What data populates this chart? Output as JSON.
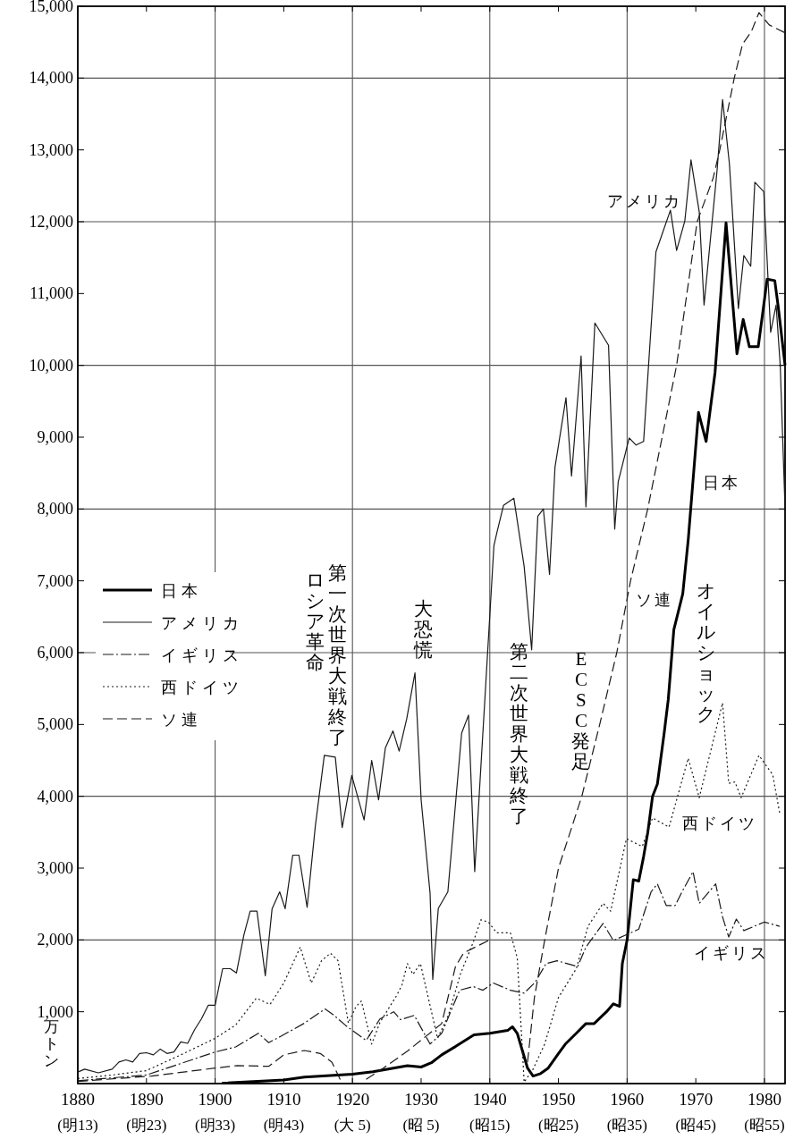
{
  "chart_data": {
    "type": "line",
    "ylabel": "万トン",
    "xlim": [
      1880,
      1983
    ],
    "ylim": [
      0,
      15000
    ],
    "xticks": [
      1880,
      1890,
      1900,
      1910,
      1920,
      1930,
      1940,
      1950,
      1960,
      1970,
      1980
    ],
    "yticks": [
      {
        "value": 0,
        "label": null
      },
      {
        "value": 1000,
        "label": "1,000"
      },
      {
        "value": 2000,
        "label": "2,000"
      },
      {
        "value": 3000,
        "label": "3,000"
      },
      {
        "value": 4000,
        "label": "4,000"
      },
      {
        "value": 5000,
        "label": "5,000"
      },
      {
        "value": 6000,
        "label": "6,000"
      },
      {
        "value": 7000,
        "label": "7,000"
      },
      {
        "value": 8000,
        "label": "8,000"
      },
      {
        "value": 9000,
        "label": "9,000"
      },
      {
        "value": 10000,
        "label": "10,000"
      },
      {
        "value": 11000,
        "label": "11,000"
      },
      {
        "value": 12000,
        "label": "12,000"
      },
      {
        "value": 13000,
        "label": "13,000"
      },
      {
        "value": 14000,
        "label": "14,000"
      },
      {
        "value": 15000,
        "label": "15,000"
      }
    ],
    "grid": true,
    "legend": "left",
    "marker": "none",
    "series": [
      {
        "name": "日本",
        "color": "#000000",
        "line_style": "solid",
        "x": [
          1901,
          1910,
          1913,
          1920,
          1923,
          1928,
          1930,
          1931.5,
          1933,
          1935,
          1937.7,
          1940,
          1942.6,
          1943.3,
          1944,
          1945.5,
          1946.3,
          1947.4,
          1948.5,
          1950,
          1951,
          1952.6,
          1954,
          1955.2,
          1957,
          1958,
          1958.9,
          1959.3,
          1960,
          1960.9,
          1961.7,
          1962.4,
          1963,
          1963.7,
          1964.4,
          1965.4,
          1966,
          1966.8,
          1968.1,
          1968.9,
          1970.4,
          1971.5,
          1972.8,
          1974.4,
          1976,
          1976.9,
          1977.8,
          1979.1,
          1980.4,
          1981.5,
          1982,
          1983
        ],
        "values": [
          5,
          50,
          90,
          130,
          165,
          250,
          230,
          290,
          400,
          515,
          680,
          700,
          740,
          790,
          700,
          215,
          105,
          140,
          215,
          420,
          550,
          700,
          835,
          835,
          1000,
          1110,
          1075,
          1670,
          2000,
          2840,
          2820,
          3160,
          3490,
          4000,
          4170,
          4880,
          5350,
          6320,
          6820,
          7570,
          9345,
          8940,
          9900,
          11985,
          10160,
          10640,
          10260,
          10260,
          11200,
          11180,
          10820,
          10000
        ]
      },
      {
        "name": "アメリカ",
        "color": "#1a1a1a",
        "line_style": "solid",
        "x": [
          1880,
          1881,
          1883,
          1885,
          1886,
          1887,
          1888,
          1889,
          1890,
          1891,
          1892,
          1893,
          1894,
          1895,
          1896,
          1897,
          1898,
          1899,
          1900,
          1901.1,
          1902.2,
          1903.1,
          1904.2,
          1905.1,
          1906.1,
          1907.3,
          1908.3,
          1909.4,
          1910.2,
          1911.3,
          1912.2,
          1913.4,
          1914.6,
          1915.9,
          1917.5,
          1918.5,
          1919.9,
          1921.7,
          1922.8,
          1923.8,
          1924.8,
          1925.9,
          1926.8,
          1927.9,
          1929.1,
          1930,
          1931.3,
          1931.7,
          1932.5,
          1933.9,
          1935.9,
          1936.9,
          1937.8,
          1940.6,
          1941,
          1942,
          1943.5,
          1945,
          1946.1,
          1947,
          1947.8,
          1948.7,
          1949.5,
          1951.1,
          1951.9,
          1953.3,
          1954,
          1955.3,
          1957.3,
          1958.2,
          1958.7,
          1960.3,
          1961.3,
          1962.4,
          1964.2,
          1966.3,
          1967.2,
          1968.4,
          1969.3,
          1970.5,
          1971.2,
          1973.1,
          1973.9,
          1974.9,
          1976.2,
          1977,
          1978,
          1978.6,
          1979.9,
          1980.9,
          1981.7,
          1982.3,
          1983
        ],
        "values": [
          160,
          200,
          150,
          200,
          300,
          330,
          300,
          420,
          430,
          400,
          480,
          420,
          440,
          580,
          560,
          750,
          900,
          1090,
          1090,
          1600,
          1600,
          1540,
          2070,
          2400,
          2400,
          1500,
          2435,
          2670,
          2435,
          3180,
          3180,
          2455,
          3590,
          4570,
          4545,
          3565,
          4290,
          3670,
          4500,
          3950,
          4675,
          4910,
          4630,
          5080,
          5720,
          3950,
          2650,
          1450,
          2440,
          2670,
          4880,
          5130,
          2950,
          7490,
          7660,
          8050,
          8150,
          7200,
          6040,
          7900,
          8000,
          7090,
          8580,
          9550,
          8460,
          10130,
          8030,
          10590,
          10280,
          7720,
          8380,
          8990,
          8890,
          8940,
          11580,
          12160,
          11600,
          12010,
          12860,
          12140,
          10840,
          12720,
          13700,
          12800,
          10790,
          11530,
          11380,
          12550,
          12420,
          10460,
          10840,
          10000,
          8000
        ]
      },
      {
        "name": "イギリス",
        "color": "#1a1a1a",
        "line_style": "dashdot",
        "x": [
          1880,
          1890,
          1900,
          1903,
          1906.3,
          1907.8,
          1909.6,
          1913,
          1916,
          1917.2,
          1919,
          1922,
          1924,
          1926,
          1927,
          1929,
          1931.3,
          1933,
          1935.6,
          1937.6,
          1939,
          1940.5,
          1943,
          1945,
          1946.6,
          1948.2,
          1949.8,
          1952.8,
          1954,
          1956.5,
          1958,
          1959.6,
          1961.7,
          1963.5,
          1964.4,
          1965.7,
          1967,
          1968.1,
          1969.6,
          1970.5,
          1972.9,
          1973.9,
          1974.8,
          1975.9,
          1977,
          1980,
          1982.2
        ],
        "values": [
          40,
          120,
          440,
          510,
          700,
          570,
          660,
          840,
          1040,
          960,
          810,
          600,
          900,
          1000,
          890,
          950,
          550,
          700,
          1300,
          1350,
          1300,
          1400,
          1300,
          1260,
          1410,
          1670,
          1710,
          1630,
          1900,
          2230,
          1990,
          2060,
          2150,
          2670,
          2780,
          2480,
          2480,
          2690,
          2950,
          2510,
          2780,
          2320,
          2040,
          2290,
          2130,
          2250,
          2190
        ]
      },
      {
        "name": "西ドイツ",
        "color": "#1a1a1a",
        "line_style": "dotted",
        "x": [
          1880,
          1885,
          1890,
          1895,
          1900,
          1903,
          1906,
          1908,
          1910,
          1912.4,
          1914,
          1915.5,
          1916.8,
          1917.9,
          1919.4,
          1920.5,
          1921.3,
          1922.8,
          1924,
          1926.4,
          1927.2,
          1928,
          1928.8,
          1929.9,
          1932.4,
          1934,
          1935.7,
          1937.6,
          1938.7,
          1939.8,
          1941,
          1943,
          1944,
          1945,
          1946.3,
          1948,
          1950,
          1952.6,
          1954.3,
          1956.5,
          1957.6,
          1959.9,
          1962.2,
          1963.7,
          1966.1,
          1968.9,
          1970.5,
          1973.9,
          1974.8,
          1975.7,
          1976.6,
          1979.2,
          1981.2,
          1982.2
        ],
        "values": [
          70,
          120,
          180,
          400,
          630,
          815,
          1190,
          1100,
          1400,
          1900,
          1400,
          1710,
          1815,
          1710,
          840,
          1070,
          1150,
          550,
          850,
          1220,
          1370,
          1670,
          1520,
          1670,
          630,
          960,
          1520,
          1970,
          2280,
          2250,
          2100,
          2100,
          1750,
          20,
          200,
          550,
          1200,
          1600,
          2190,
          2510,
          2400,
          3410,
          3300,
          3700,
          3570,
          4530,
          3980,
          5300,
          4180,
          4200,
          3980,
          4570,
          4300,
          3770
        ]
      },
      {
        "name": "ソ連",
        "color": "#1a1a1a",
        "line_style": "dashed",
        "x": [
          1880,
          1890.7,
          1900,
          1903.2,
          1907.8,
          1910,
          1913,
          1915.3,
          1917,
          1918.5,
          1920,
          1922,
          1924.5,
          1928,
          1933,
          1935,
          1936.2,
          1940,
          1943,
          1945.5,
          1946.5,
          1948,
          1950,
          1953.4,
          1956,
          1958.5,
          1960.5,
          1963,
          1967.2,
          1970.2,
          1972.5,
          1973.5,
          1975.6,
          1976.8,
          1978.1,
          1979.2,
          1980.7,
          1983
        ],
        "values": [
          30,
          105,
          215,
          250,
          240,
          400,
          460,
          420,
          300,
          0,
          null,
          60,
          215,
          450,
          835,
          1630,
          1820,
          2000,
          null,
          300,
          1200,
          2000,
          3000,
          4000,
          5000,
          6000,
          7000,
          8000,
          10000,
          12000,
          12600,
          13000,
          14000,
          14470,
          14650,
          14910,
          14740,
          14630
        ]
      }
    ],
    "annotations": [
      "アメリカ",
      "日本",
      "ソ連",
      "西ドイツ",
      "イギリス",
      "第一次世界大戦終了",
      "ロシア革命",
      "大恐慌",
      "第二次世界大戦終了",
      "ECSC発足",
      "オイルショック",
      "(明13)",
      "(明23)",
      "(明33)",
      "(明43)",
      "(大 5)",
      "(昭 5)",
      "(昭15)",
      "(昭25)",
      "(昭35)",
      "(昭45)",
      "(昭55)"
    ]
  }
}
